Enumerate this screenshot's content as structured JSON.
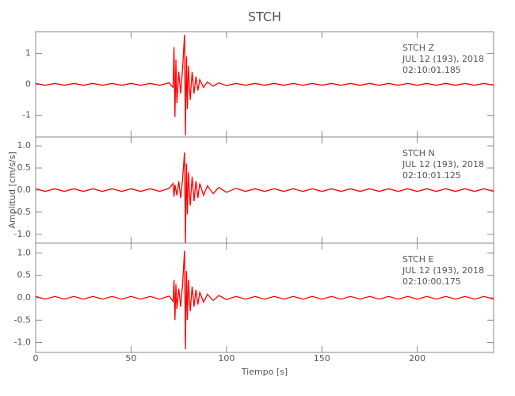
{
  "chart_data": [
    {
      "type": "line",
      "title": "STCH",
      "color": "#ff0000",
      "annotations": [
        "STCH   Z",
        "JUL 12 (193), 2018",
        "02:10:01.185"
      ],
      "ylim": [
        -1.7,
        1.7
      ],
      "yticks": [
        1,
        0,
        -1
      ],
      "x": [
        0,
        5,
        10,
        15,
        20,
        25,
        30,
        35,
        40,
        45,
        50,
        55,
        60,
        65,
        70,
        72,
        72.5,
        73,
        73.5,
        74,
        75,
        76,
        77,
        78,
        78.5,
        79,
        79.5,
        80,
        81,
        82,
        83,
        84,
        85,
        86,
        88,
        90,
        93,
        96,
        100,
        105,
        110,
        115,
        120,
        125,
        130,
        135,
        140,
        145,
        150,
        155,
        160,
        165,
        170,
        175,
        180,
        185,
        190,
        195,
        200,
        205,
        210,
        215,
        220,
        225,
        230,
        235,
        240
      ],
      "values": [
        0.03,
        -0.03,
        0.03,
        -0.03,
        0.03,
        -0.03,
        0.03,
        -0.03,
        0.03,
        -0.03,
        0.03,
        -0.03,
        0.03,
        -0.03,
        0.05,
        -0.1,
        1.2,
        -1.05,
        0.8,
        -0.6,
        0.4,
        -0.3,
        0.5,
        1.6,
        -1.65,
        0.9,
        -0.8,
        0.6,
        -0.5,
        0.4,
        -0.3,
        0.25,
        -0.2,
        0.15,
        -0.1,
        0.08,
        -0.06,
        0.05,
        -0.04,
        0.03,
        -0.03,
        0.03,
        -0.03,
        0.03,
        -0.03,
        0.03,
        -0.03,
        0.03,
        -0.03,
        0.03,
        -0.03,
        0.03,
        -0.03,
        0.03,
        -0.03,
        0.03,
        -0.03,
        0.03,
        -0.03,
        0.03,
        -0.03,
        0.03,
        -0.03,
        0.03,
        -0.03,
        0.03,
        -0.03
      ]
    },
    {
      "type": "line",
      "color": "#ff0000",
      "ylabel": "Amplitud [cm/s/s]",
      "annotations": [
        "STCH   N",
        "JUL 12 (193), 2018",
        "02:10:01.125"
      ],
      "ylim": [
        -1.2,
        1.2
      ],
      "yticks": [
        {
          "value": 1,
          "label": "1.0"
        },
        0.5,
        {
          "value": 0,
          "label": "0.0"
        },
        -0.5,
        {
          "value": -1,
          "label": "-1.0"
        }
      ],
      "x": [
        0,
        5,
        10,
        15,
        20,
        25,
        30,
        35,
        40,
        45,
        50,
        55,
        60,
        65,
        70,
        72,
        72.5,
        73,
        74,
        75,
        76,
        77,
        78,
        78.5,
        79,
        79.5,
        80,
        81,
        82,
        83,
        84,
        85,
        86,
        88,
        90,
        93,
        96,
        100,
        105,
        110,
        115,
        120,
        125,
        130,
        135,
        140,
        145,
        150,
        155,
        160,
        165,
        170,
        175,
        180,
        185,
        190,
        195,
        200,
        205,
        210,
        215,
        220,
        225,
        230,
        235,
        240
      ],
      "values": [
        0.03,
        -0.03,
        0.03,
        -0.03,
        0.03,
        -0.03,
        0.03,
        -0.03,
        0.03,
        -0.03,
        0.03,
        -0.03,
        0.03,
        -0.03,
        0.04,
        0.15,
        -0.15,
        0.12,
        -0.12,
        0.2,
        -0.18,
        0.25,
        0.85,
        -1.2,
        0.6,
        -0.55,
        0.4,
        -0.35,
        0.3,
        -0.25,
        0.2,
        -0.18,
        0.15,
        -0.12,
        0.1,
        -0.08,
        0.06,
        -0.05,
        0.04,
        -0.03,
        0.03,
        -0.03,
        0.03,
        -0.03,
        0.03,
        -0.03,
        0.03,
        -0.03,
        0.03,
        -0.03,
        0.03,
        -0.03,
        0.03,
        -0.03,
        0.03,
        -0.03,
        0.03,
        -0.03,
        0.03,
        -0.03,
        0.03,
        -0.03,
        0.03,
        -0.03,
        0.03,
        -0.03
      ]
    },
    {
      "type": "line",
      "color": "#ff0000",
      "xlabel": "Tiempo [s]",
      "annotations": [
        "STCH   E",
        "JUL 12 (193), 2018",
        "02:10:00.175"
      ],
      "ylim": [
        -1.22,
        1.22
      ],
      "yticks": [
        {
          "value": 1,
          "label": "1.0"
        },
        0.5,
        {
          "value": 0,
          "label": "0.0"
        },
        -0.5,
        {
          "value": -1,
          "label": "-1.0"
        }
      ],
      "xlim": [
        0,
        240
      ],
      "xticks": [
        0,
        50,
        100,
        150,
        200
      ],
      "x": [
        0,
        5,
        10,
        15,
        20,
        25,
        30,
        35,
        40,
        45,
        50,
        55,
        60,
        65,
        70,
        72,
        72.5,
        73,
        73.5,
        74,
        75,
        76,
        77,
        78,
        78.5,
        79,
        79.5,
        80,
        81,
        82,
        83,
        84,
        85,
        86,
        88,
        90,
        93,
        96,
        100,
        105,
        110,
        115,
        120,
        125,
        130,
        135,
        140,
        145,
        150,
        155,
        160,
        165,
        170,
        175,
        180,
        185,
        190,
        195,
        200,
        205,
        210,
        215,
        220,
        225,
        230,
        235,
        240
      ],
      "values": [
        0.03,
        -0.03,
        0.03,
        -0.03,
        0.03,
        -0.03,
        0.03,
        -0.03,
        0.03,
        -0.03,
        0.03,
        -0.03,
        0.03,
        -0.03,
        0.04,
        -0.08,
        0.4,
        -0.5,
        0.3,
        -0.25,
        0.2,
        -0.2,
        0.3,
        1.05,
        -1.15,
        0.6,
        -0.5,
        0.4,
        -0.3,
        0.25,
        -0.2,
        0.18,
        -0.15,
        0.12,
        -0.1,
        0.08,
        -0.06,
        0.05,
        -0.04,
        0.03,
        -0.03,
        0.03,
        -0.03,
        0.03,
        -0.03,
        0.03,
        -0.03,
        0.03,
        -0.03,
        0.03,
        -0.03,
        0.03,
        -0.03,
        0.03,
        -0.03,
        0.03,
        -0.03,
        0.03,
        -0.03,
        0.03,
        -0.03,
        0.03,
        -0.03,
        0.03,
        -0.03,
        0.03,
        -0.03
      ]
    }
  ]
}
